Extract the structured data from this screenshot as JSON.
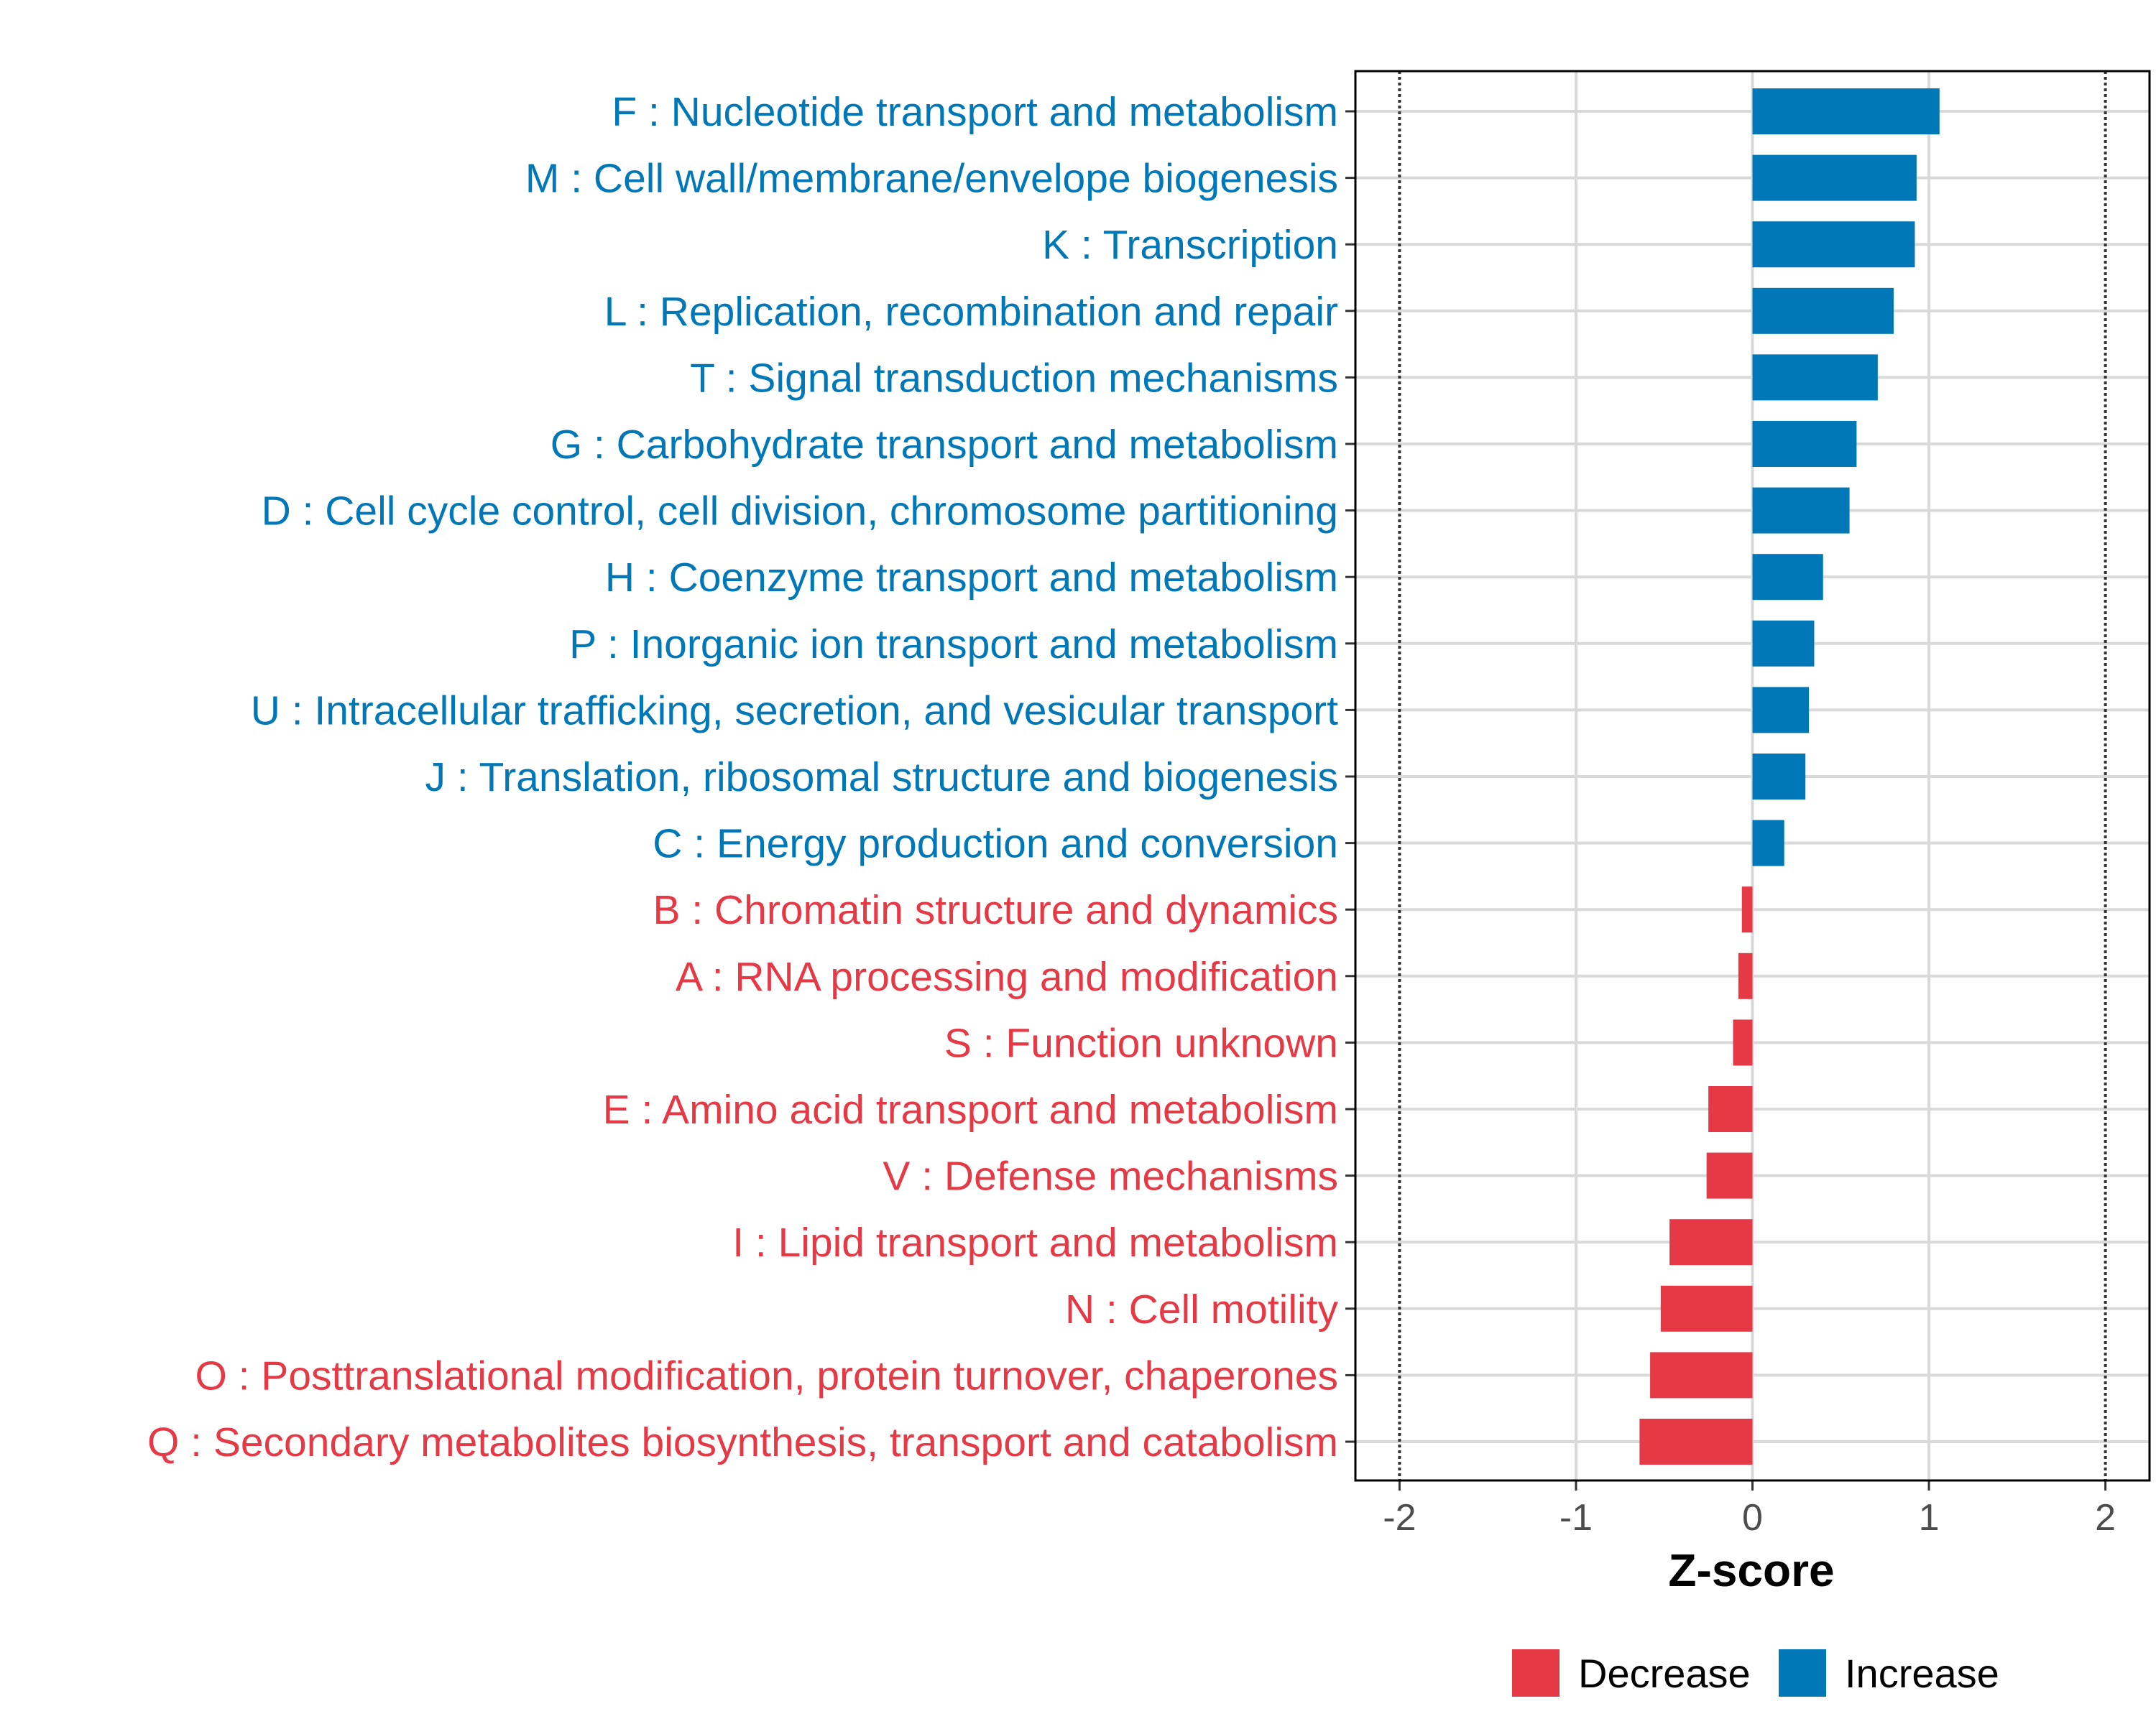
{
  "chart_data": {
    "type": "bar",
    "orientation": "horizontal",
    "xlabel": "Z-score",
    "xlim": [
      -2.25,
      2.25
    ],
    "xticks": [
      -2,
      -1,
      0,
      1,
      2
    ],
    "xtick_labels": [
      "-2",
      "-1",
      "0",
      "1",
      "2"
    ],
    "threshold_lines": [
      -2,
      2
    ],
    "grid": true,
    "categories": [
      "F : Nucleotide transport and metabolism",
      "M : Cell wall/membrane/envelope biogenesis",
      "K : Transcription",
      "L : Replication, recombination and repair",
      "T : Signal transduction mechanisms",
      "G : Carbohydrate transport and metabolism",
      "D : Cell cycle control, cell division, chromosome partitioning",
      "H : Coenzyme transport and metabolism",
      "P : Inorganic ion transport and metabolism",
      "U : Intracellular trafficking, secretion, and vesicular transport",
      "J : Translation, ribosomal structure and biogenesis",
      "C : Energy production and conversion",
      "B : Chromatin structure and dynamics",
      "A : RNA processing and modification",
      "S : Function unknown",
      "E : Amino acid transport and metabolism",
      "V : Defense mechanisms",
      "I : Lipid transport and metabolism",
      "N : Cell motility",
      "O : Posttranslational modification, protein turnover, chaperones",
      "Q : Secondary metabolites biosynthesis, transport and catabolism"
    ],
    "values": [
      1.06,
      0.93,
      0.92,
      0.8,
      0.71,
      0.59,
      0.55,
      0.4,
      0.35,
      0.32,
      0.3,
      0.18,
      -0.06,
      -0.08,
      -0.11,
      -0.25,
      -0.26,
      -0.47,
      -0.52,
      -0.58,
      -0.64
    ],
    "legend": [
      {
        "label": "Decrease",
        "color": "#e63946"
      },
      {
        "label": "Increase",
        "color": "#0077b6"
      }
    ],
    "legend_position": "bottom"
  }
}
